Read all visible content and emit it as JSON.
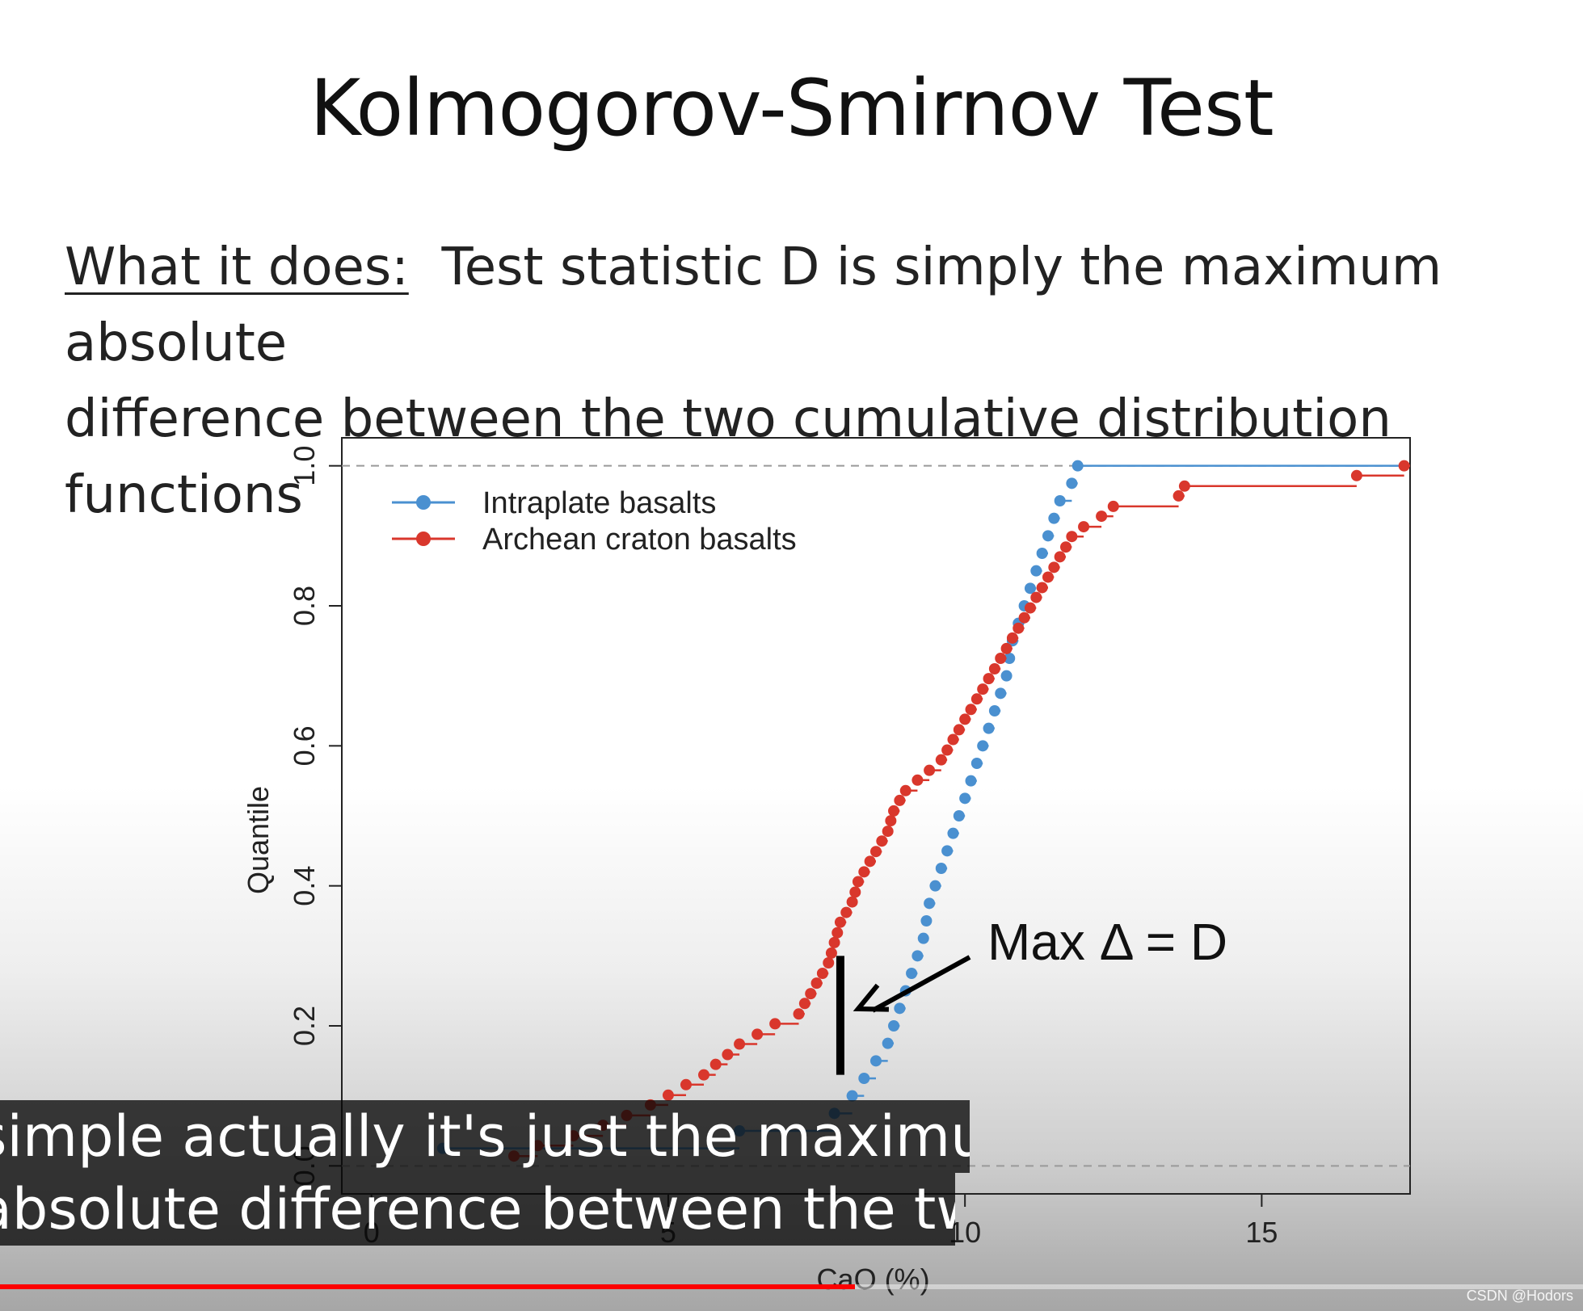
{
  "slide": {
    "title": "Kolmogorov-Smirnov Test",
    "lead": "What it does:",
    "text_line1": "Test statistic D is simply the maximum absolute",
    "text_line2": "difference between the two cumulative distribution functions"
  },
  "chart_data": {
    "type": "line",
    "title": "",
    "xlabel": "CaO (%)",
    "ylabel": "Quantile",
    "xlim": [
      -0.5,
      17.5
    ],
    "ylim": [
      -0.04,
      1.04
    ],
    "x_ticks": [
      "0",
      "5",
      "10",
      "15"
    ],
    "x_tick_values": [
      0,
      5,
      10,
      15
    ],
    "y_ticks": [
      "0.0",
      "0.2",
      "0.4",
      "0.6",
      "0.8",
      "1.0"
    ],
    "y_tick_values": [
      0,
      0.2,
      0.4,
      0.6,
      0.8,
      1.0
    ],
    "step_function": true,
    "reference_lines": [
      0,
      1
    ],
    "legend_position": "top-left",
    "series": [
      {
        "name": "Intraplate basalts",
        "color": "#4a90d0",
        "x": [
          1.2,
          6.2,
          7.8,
          8.1,
          8.3,
          8.5,
          8.7,
          8.8,
          8.9,
          9.0,
          9.1,
          9.2,
          9.3,
          9.35,
          9.4,
          9.5,
          9.6,
          9.7,
          9.8,
          9.9,
          10.0,
          10.1,
          10.2,
          10.3,
          10.4,
          10.5,
          10.6,
          10.7,
          10.75,
          10.8,
          10.9,
          11.0,
          11.1,
          11.2,
          11.3,
          11.4,
          11.5,
          11.6,
          11.8,
          11.9
        ],
        "y": [
          0.025,
          0.05,
          0.075,
          0.1,
          0.125,
          0.15,
          0.175,
          0.2,
          0.225,
          0.25,
          0.275,
          0.3,
          0.325,
          0.35,
          0.375,
          0.4,
          0.425,
          0.45,
          0.475,
          0.5,
          0.525,
          0.55,
          0.575,
          0.6,
          0.625,
          0.65,
          0.675,
          0.7,
          0.725,
          0.75,
          0.775,
          0.8,
          0.825,
          0.85,
          0.875,
          0.9,
          0.925,
          0.95,
          0.975,
          1.0
        ]
      },
      {
        "name": "Archean craton basalts",
        "color": "#d9372c",
        "x": [
          2.4,
          2.8,
          3.4,
          3.9,
          4.3,
          4.7,
          5.0,
          5.3,
          5.6,
          5.8,
          6.0,
          6.2,
          6.5,
          6.8,
          7.2,
          7.3,
          7.4,
          7.5,
          7.6,
          7.7,
          7.75,
          7.8,
          7.85,
          7.9,
          8.0,
          8.1,
          8.15,
          8.2,
          8.3,
          8.4,
          8.5,
          8.6,
          8.7,
          8.75,
          8.8,
          8.9,
          9.0,
          9.2,
          9.4,
          9.6,
          9.7,
          9.8,
          9.9,
          10.0,
          10.1,
          10.2,
          10.3,
          10.4,
          10.5,
          10.6,
          10.7,
          10.8,
          10.9,
          11.0,
          11.1,
          11.2,
          11.3,
          11.4,
          11.5,
          11.6,
          11.7,
          11.8,
          12.0,
          12.3,
          12.5,
          13.6,
          13.7,
          16.6,
          17.4
        ],
        "y": [
          0.014,
          0.029,
          0.043,
          0.058,
          0.072,
          0.087,
          0.101,
          0.116,
          0.13,
          0.145,
          0.159,
          0.174,
          0.188,
          0.203,
          0.217,
          0.232,
          0.246,
          0.261,
          0.275,
          0.29,
          0.304,
          0.319,
          0.333,
          0.348,
          0.362,
          0.377,
          0.391,
          0.406,
          0.42,
          0.435,
          0.449,
          0.464,
          0.478,
          0.493,
          0.507,
          0.522,
          0.536,
          0.551,
          0.565,
          0.58,
          0.594,
          0.609,
          0.623,
          0.638,
          0.652,
          0.667,
          0.681,
          0.696,
          0.71,
          0.725,
          0.739,
          0.754,
          0.768,
          0.783,
          0.797,
          0.812,
          0.826,
          0.841,
          0.855,
          0.87,
          0.884,
          0.899,
          0.913,
          0.928,
          0.942,
          0.957,
          0.971,
          0.986,
          1.0
        ]
      }
    ],
    "annotation": {
      "label": "Max Δ = D",
      "x": 7.9,
      "y_bottom": 0.13,
      "y_top": 0.3
    }
  },
  "subtitle": {
    "line1": "simple actually it's just the maximum",
    "line2": "absolute difference between the two"
  },
  "player": {
    "progress": 0.54
  },
  "watermark": "CSDN @Hodors"
}
